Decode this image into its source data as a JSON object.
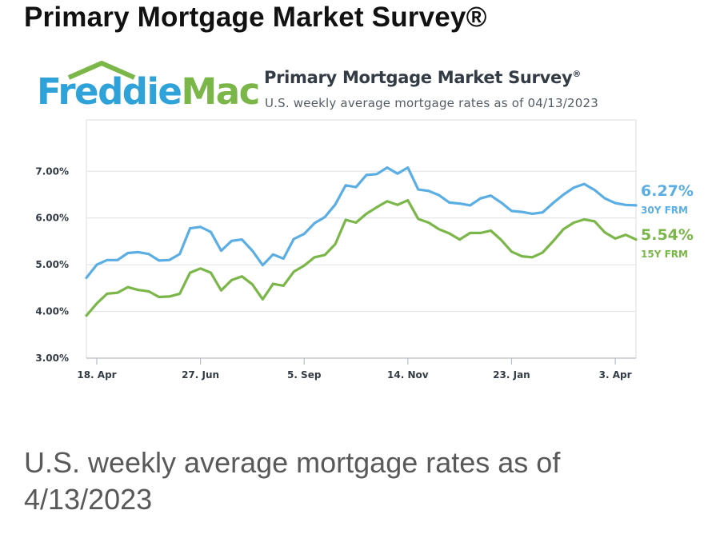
{
  "page": {
    "title": "Primary Mortgage Market Survey®",
    "caption_line1": "U.S. weekly average mortgage rates as of",
    "caption_line2": "4/13/2023"
  },
  "logo": {
    "text": "FreddieMac",
    "colors": {
      "blue": "#2ea2d9",
      "green": "#7ab648"
    }
  },
  "chart_data": {
    "type": "line",
    "title": "Primary Mortgage Market Survey",
    "title_mark": "®",
    "subtitle": "U.S. weekly average mortgage rates as of 04/13/2023",
    "x_ticks": [
      "18. Apr",
      "27. Jun",
      "5. Sep",
      "14. Nov",
      "23. Jan",
      "3. Apr"
    ],
    "x_tick_weeks": [
      1,
      11,
      21,
      31,
      41,
      51
    ],
    "y_ticks": [
      "3.00%",
      "4.00%",
      "5.00%",
      "6.00%",
      "7.00%"
    ],
    "y_tick_values": [
      3,
      4,
      5,
      6,
      7
    ],
    "ylim": [
      3,
      8.1
    ],
    "grid": true,
    "series": [
      {
        "name": "30Y FRM",
        "end_label": "6.27%",
        "color": "#5aaee3",
        "values": [
          4.72,
          5.0,
          5.1,
          5.1,
          5.25,
          5.27,
          5.23,
          5.09,
          5.1,
          5.23,
          5.78,
          5.81,
          5.7,
          5.3,
          5.51,
          5.54,
          5.3,
          4.99,
          5.22,
          5.13,
          5.55,
          5.66,
          5.89,
          6.02,
          6.29,
          6.7,
          6.66,
          6.92,
          6.94,
          7.08,
          6.95,
          7.08,
          6.61,
          6.58,
          6.49,
          6.33,
          6.31,
          6.27,
          6.42,
          6.48,
          6.33,
          6.15,
          6.13,
          6.09,
          6.12,
          6.32,
          6.5,
          6.65,
          6.73,
          6.6,
          6.42,
          6.32,
          6.28,
          6.27
        ]
      },
      {
        "name": "15Y FRM",
        "end_label": "5.54%",
        "color": "#7ab648",
        "values": [
          3.91,
          4.17,
          4.38,
          4.4,
          4.52,
          4.46,
          4.43,
          4.31,
          4.32,
          4.38,
          4.83,
          4.92,
          4.83,
          4.45,
          4.67,
          4.75,
          4.58,
          4.26,
          4.59,
          4.55,
          4.85,
          4.98,
          5.16,
          5.21,
          5.44,
          5.96,
          5.9,
          6.09,
          6.23,
          6.36,
          6.28,
          6.38,
          5.98,
          5.9,
          5.76,
          5.67,
          5.54,
          5.68,
          5.68,
          5.73,
          5.53,
          5.28,
          5.18,
          5.16,
          5.26,
          5.5,
          5.76,
          5.9,
          5.97,
          5.93,
          5.69,
          5.56,
          5.64,
          5.54
        ]
      }
    ]
  }
}
